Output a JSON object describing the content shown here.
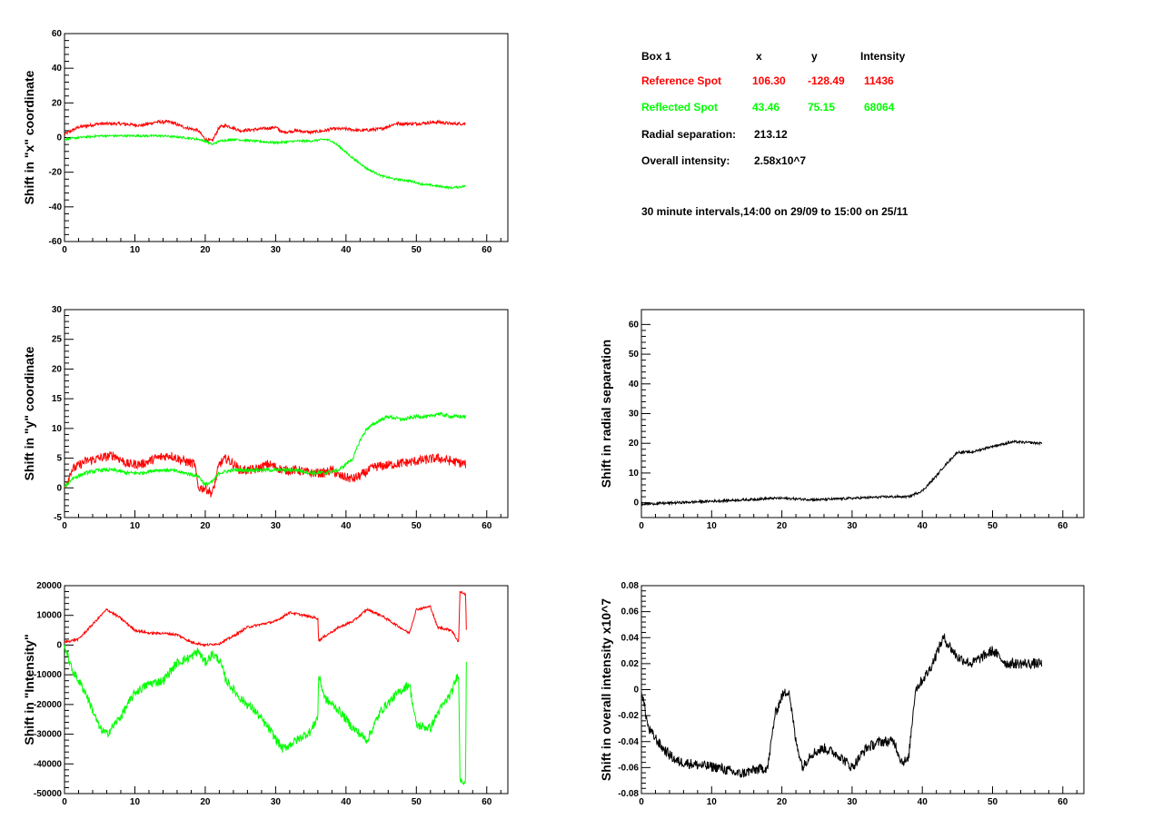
{
  "info_panel": {
    "box_label": "Box 1",
    "col_x": "x",
    "col_y": "y",
    "col_intensity": "Intensity",
    "reference": {
      "label": "Reference Spot",
      "x": "106.30",
      "y": "-128.49",
      "intensity": "11436",
      "color": "#ff0000"
    },
    "reflected": {
      "label": "Reflected Spot",
      "x": "43.46",
      "y": "75.15",
      "intensity": "68064",
      "color": "#00ff00"
    },
    "radial_label": "Radial separation:",
    "radial_value": "213.12",
    "overall_label": "Overall intensity:",
    "overall_value": "2.58x10^7",
    "interval_note": "30 minute intervals,14:00 on 29/09 to 15:00 on 25/11"
  },
  "chart_data": [
    {
      "id": "x-shift",
      "type": "line",
      "ylabel": "Shift in \"x\" coordinate",
      "xlim": [
        0,
        63
      ],
      "ylim": [
        -60,
        60
      ],
      "xticks": [
        0,
        10,
        20,
        30,
        40,
        50,
        60
      ],
      "yticks": [
        -60,
        -40,
        -20,
        0,
        20,
        40,
        60
      ],
      "series": [
        {
          "color": "#ff0000",
          "noise": 0.9,
          "points": [
            [
              0,
              2
            ],
            [
              2,
              6
            ],
            [
              5,
              8
            ],
            [
              8,
              8
            ],
            [
              11,
              7
            ],
            [
              13,
              9
            ],
            [
              15,
              9
            ],
            [
              17,
              6
            ],
            [
              19,
              4
            ],
            [
              20,
              -1
            ],
            [
              21,
              -2
            ],
            [
              22,
              6
            ],
            [
              23,
              7
            ],
            [
              25,
              4
            ],
            [
              28,
              5
            ],
            [
              30,
              6
            ],
            [
              31,
              3
            ],
            [
              33,
              4
            ],
            [
              35,
              3
            ],
            [
              37,
              4
            ],
            [
              38,
              5
            ],
            [
              40,
              5
            ],
            [
              42,
              4
            ],
            [
              45,
              5
            ],
            [
              47,
              8
            ],
            [
              50,
              8
            ],
            [
              53,
              9
            ],
            [
              55,
              8
            ],
            [
              57,
              8
            ]
          ]
        },
        {
          "color": "#00ff00",
          "noise": 0.6,
          "points": [
            [
              0,
              -1
            ],
            [
              2,
              0
            ],
            [
              5,
              1
            ],
            [
              8,
              1
            ],
            [
              11,
              1
            ],
            [
              14,
              1
            ],
            [
              17,
              0
            ],
            [
              19,
              -1
            ],
            [
              20,
              -2
            ],
            [
              21,
              -4
            ],
            [
              22,
              -2
            ],
            [
              24,
              -1
            ],
            [
              27,
              -2
            ],
            [
              30,
              -3
            ],
            [
              33,
              -2
            ],
            [
              35,
              -2
            ],
            [
              37,
              -1
            ],
            [
              38,
              -2
            ],
            [
              39,
              -5
            ],
            [
              41,
              -12
            ],
            [
              43,
              -18
            ],
            [
              45,
              -22
            ],
            [
              47,
              -24
            ],
            [
              49,
              -25
            ],
            [
              51,
              -27
            ],
            [
              53,
              -28
            ],
            [
              55,
              -29
            ],
            [
              57,
              -28
            ]
          ]
        }
      ]
    },
    {
      "id": "y-shift",
      "type": "line",
      "ylabel": "Shift in \"y\" coordinate",
      "xlim": [
        0,
        63
      ],
      "ylim": [
        -5,
        30
      ],
      "xticks": [
        0,
        10,
        20,
        30,
        40,
        50,
        60
      ],
      "yticks": [
        -5,
        0,
        5,
        10,
        15,
        20,
        25,
        30
      ],
      "series": [
        {
          "color": "#ff0000",
          "noise": 0.8,
          "points": [
            [
              0,
              0
            ],
            [
              1,
              3
            ],
            [
              3,
              4.5
            ],
            [
              5,
              5
            ],
            [
              7,
              5.5
            ],
            [
              9,
              4
            ],
            [
              11,
              4
            ],
            [
              13,
              5
            ],
            [
              15,
              5.5
            ],
            [
              17,
              4.5
            ],
            [
              18.5,
              4
            ],
            [
              19,
              0
            ],
            [
              20,
              0
            ],
            [
              21,
              -1
            ],
            [
              22,
              4
            ],
            [
              23,
              5
            ],
            [
              25,
              3
            ],
            [
              27,
              3
            ],
            [
              29,
              4
            ],
            [
              31,
              3
            ],
            [
              33,
              3
            ],
            [
              35,
              2.5
            ],
            [
              37,
              2.5
            ],
            [
              38,
              3
            ],
            [
              39,
              2
            ],
            [
              41,
              1.5
            ],
            [
              42,
              2
            ],
            [
              44,
              3.5
            ],
            [
              47,
              4
            ],
            [
              50,
              4.5
            ],
            [
              53,
              5
            ],
            [
              55,
              4.5
            ],
            [
              57,
              4
            ]
          ]
        },
        {
          "color": "#00ff00",
          "noise": 0.3,
          "points": [
            [
              0,
              0
            ],
            [
              1,
              1.5
            ],
            [
              3,
              2.5
            ],
            [
              5,
              3
            ],
            [
              7,
              3
            ],
            [
              9,
              2.5
            ],
            [
              11,
              2.5
            ],
            [
              13,
              3
            ],
            [
              15,
              3
            ],
            [
              17,
              2.5
            ],
            [
              19,
              2
            ],
            [
              20,
              0.5
            ],
            [
              21,
              1
            ],
            [
              22,
              2.5
            ],
            [
              24,
              3
            ],
            [
              27,
              3
            ],
            [
              30,
              3
            ],
            [
              33,
              3
            ],
            [
              35,
              2.5
            ],
            [
              37,
              2.5
            ],
            [
              39,
              3
            ],
            [
              41,
              5
            ],
            [
              42,
              8
            ],
            [
              43,
              10
            ],
            [
              45,
              11.5
            ],
            [
              46,
              12
            ],
            [
              48,
              11.5
            ],
            [
              50,
              12
            ],
            [
              52,
              12
            ],
            [
              53,
              12.5
            ],
            [
              55,
              12
            ],
            [
              57,
              12
            ]
          ]
        }
      ]
    },
    {
      "id": "intensity-shift",
      "type": "line",
      "ylabel": "Shift in \"Intensity\"",
      "xlim": [
        0,
        63
      ],
      "ylim": [
        -50000,
        20000
      ],
      "xticks": [
        0,
        10,
        20,
        30,
        40,
        50,
        60
      ],
      "yticks": [
        -50000,
        -40000,
        -30000,
        -20000,
        -10000,
        0,
        10000,
        20000
      ],
      "series": [
        {
          "color": "#ff0000",
          "noise": 400,
          "points": [
            [
              0,
              1000
            ],
            [
              2,
              2000
            ],
            [
              4,
              7000
            ],
            [
              6,
              12000
            ],
            [
              8,
              9000
            ],
            [
              10,
              5000
            ],
            [
              12,
              4000
            ],
            [
              14,
              4000
            ],
            [
              16,
              3500
            ],
            [
              18,
              1000
            ],
            [
              20,
              0
            ],
            [
              22,
              500
            ],
            [
              24,
              3000
            ],
            [
              26,
              6000
            ],
            [
              28,
              7000
            ],
            [
              30,
              8000
            ],
            [
              32,
              11000
            ],
            [
              34,
              10000
            ],
            [
              36,
              9000
            ],
            [
              36.1,
              1500
            ],
            [
              37,
              3000
            ],
            [
              39,
              6000
            ],
            [
              41,
              8000
            ],
            [
              43,
              12000
            ],
            [
              45,
              10000
            ],
            [
              47,
              7000
            ],
            [
              49,
              4000
            ],
            [
              50,
              12000
            ],
            [
              52,
              13000
            ],
            [
              53,
              6000
            ],
            [
              55,
              5000
            ],
            [
              56,
              1000
            ],
            [
              56.2,
              18000
            ],
            [
              57,
              17000
            ],
            [
              57.1,
              5000
            ]
          ]
        },
        {
          "color": "#00ff00",
          "noise": 1500,
          "points": [
            [
              0,
              0
            ],
            [
              1,
              -8000
            ],
            [
              3,
              -16000
            ],
            [
              5,
              -28000
            ],
            [
              6,
              -30000
            ],
            [
              8,
              -24000
            ],
            [
              10,
              -16000
            ],
            [
              12,
              -13000
            ],
            [
              14,
              -12000
            ],
            [
              16,
              -6000
            ],
            [
              18,
              -4000
            ],
            [
              19,
              -2000
            ],
            [
              20,
              -6000
            ],
            [
              21,
              -3000
            ],
            [
              22,
              -5000
            ],
            [
              23,
              -12000
            ],
            [
              25,
              -18000
            ],
            [
              27,
              -22000
            ],
            [
              29,
              -28000
            ],
            [
              31,
              -35000
            ],
            [
              33,
              -32000
            ],
            [
              35,
              -29000
            ],
            [
              36,
              -24000
            ],
            [
              36.1,
              -10000
            ],
            [
              37,
              -18000
            ],
            [
              39,
              -22000
            ],
            [
              41,
              -28000
            ],
            [
              43,
              -32000
            ],
            [
              45,
              -22000
            ],
            [
              47,
              -17000
            ],
            [
              49,
              -13000
            ],
            [
              50,
              -27000
            ],
            [
              52,
              -28000
            ],
            [
              53,
              -23000
            ],
            [
              55,
              -16000
            ],
            [
              56,
              -9000
            ],
            [
              56.2,
              -45000
            ],
            [
              57,
              -46000
            ],
            [
              57.1,
              -5000
            ]
          ]
        }
      ]
    },
    {
      "id": "radial-shift",
      "type": "line",
      "ylabel": "Shift in radial separation",
      "xlim": [
        0,
        63
      ],
      "ylim": [
        -5,
        65
      ],
      "xticks": [
        0,
        10,
        20,
        30,
        40,
        50,
        60
      ],
      "yticks": [
        0,
        10,
        20,
        30,
        40,
        50,
        60
      ],
      "series": [
        {
          "color": "#000000",
          "noise": 0.4,
          "points": [
            [
              0,
              -0.5
            ],
            [
              5,
              0
            ],
            [
              10,
              0.5
            ],
            [
              15,
              1
            ],
            [
              19,
              1.5
            ],
            [
              20,
              1.5
            ],
            [
              25,
              1
            ],
            [
              30,
              1.5
            ],
            [
              35,
              2
            ],
            [
              38,
              2
            ],
            [
              40,
              4
            ],
            [
              42,
              9
            ],
            [
              43,
              12
            ],
            [
              45,
              17
            ],
            [
              47,
              17
            ],
            [
              50,
              19
            ],
            [
              53,
              20.5
            ],
            [
              57,
              20
            ]
          ]
        }
      ]
    },
    {
      "id": "overall-intensity-shift",
      "type": "line",
      "ylabel": "Shift in overall intensity x10^7",
      "xlim": [
        0,
        63
      ],
      "ylim": [
        -0.08,
        0.08
      ],
      "xticks": [
        0,
        10,
        20,
        30,
        40,
        50,
        60
      ],
      "yticks": [
        -0.08,
        -0.06,
        -0.04,
        -0.02,
        0,
        0.02,
        0.04,
        0.06,
        0.08
      ],
      "series": [
        {
          "color": "#000000",
          "noise": 0.004,
          "points": [
            [
              0,
              0
            ],
            [
              1,
              -0.03
            ],
            [
              3,
              -0.045
            ],
            [
              5,
              -0.055
            ],
            [
              8,
              -0.058
            ],
            [
              11,
              -0.06
            ],
            [
              14,
              -0.065
            ],
            [
              16,
              -0.062
            ],
            [
              18,
              -0.06
            ],
            [
              19,
              -0.02
            ],
            [
              20,
              -0.005
            ],
            [
              21,
              0
            ],
            [
              22,
              -0.04
            ],
            [
              23,
              -0.06
            ],
            [
              24,
              -0.05
            ],
            [
              26,
              -0.045
            ],
            [
              28,
              -0.05
            ],
            [
              30,
              -0.06
            ],
            [
              32,
              -0.045
            ],
            [
              34,
              -0.04
            ],
            [
              36,
              -0.04
            ],
            [
              37,
              -0.055
            ],
            [
              38,
              -0.055
            ],
            [
              39,
              0
            ],
            [
              41,
              0.015
            ],
            [
              43,
              0.04
            ],
            [
              45,
              0.025
            ],
            [
              47,
              0.02
            ],
            [
              50,
              0.03
            ],
            [
              52,
              0.02
            ],
            [
              55,
              0.02
            ],
            [
              57,
              0.02
            ]
          ]
        }
      ]
    }
  ]
}
